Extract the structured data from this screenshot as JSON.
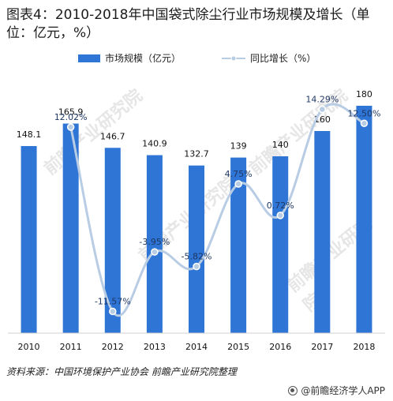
{
  "title": "图表4：2010-2018年中国袋式除尘行业市场规模及增长（单位：亿元，%）",
  "source": "资料来源：中国环境保护产业协会 前瞻产业研究院整理",
  "credit": "@前瞻经济学人APP",
  "watermark": "前瞻产业研究院",
  "colors": {
    "bar": "#2e75d6",
    "line": "#b8cce4",
    "marker": "#b8cce4",
    "label": "#1f3864"
  },
  "chart_data": {
    "type": "bar",
    "categories": [
      "2010",
      "2011",
      "2012",
      "2013",
      "2014",
      "2015",
      "2016",
      "2017",
      "2018"
    ],
    "series": [
      {
        "name": "市场规模（亿元）",
        "type": "bar",
        "values": [
          148.1,
          165.9,
          146.7,
          140.9,
          132.7,
          139,
          140,
          160,
          180
        ],
        "labels": [
          "148.1",
          "165.9",
          "146.7",
          "140.9",
          "132.7",
          "139",
          "140",
          "160",
          "180"
        ]
      },
      {
        "name": "同比增长（%）",
        "type": "line",
        "axis": "secondary",
        "values": [
          null,
          12.02,
          -11.57,
          -3.95,
          -5.82,
          4.75,
          0.72,
          14.29,
          12.5
        ],
        "labels": [
          "",
          "12.02%",
          "-11.57%",
          "-3.95%",
          "-5.82%",
          "4.75%",
          "0.72%",
          "14.29%",
          "12.50%"
        ]
      }
    ],
    "legend_position": "top",
    "grid": false
  }
}
